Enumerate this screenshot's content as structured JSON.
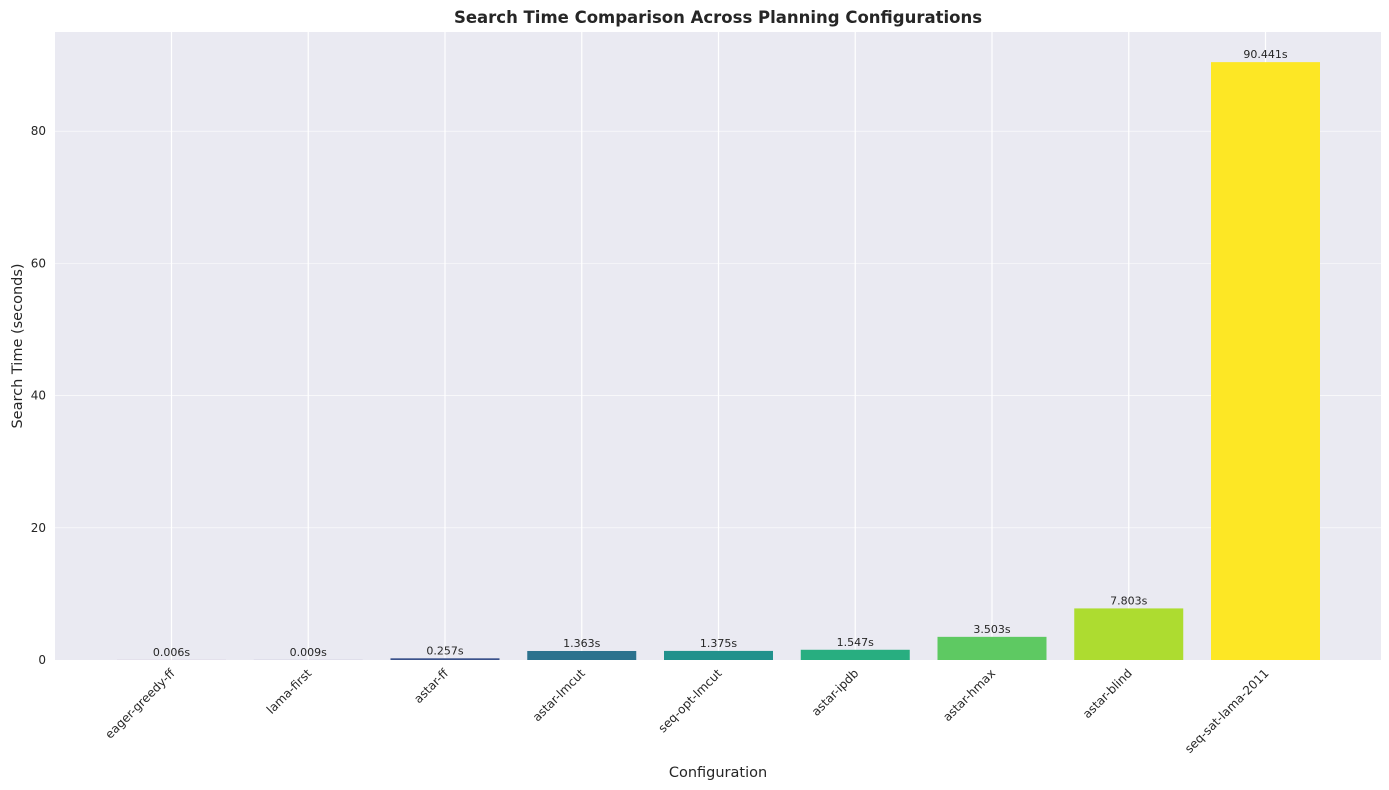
{
  "chart_data": {
    "type": "bar",
    "title": "Search Time Comparison Across Planning Configurations",
    "xlabel": "Configuration",
    "ylabel": "Search Time (seconds)",
    "ylim": [
      0,
      95
    ],
    "yticks": [
      0,
      20,
      40,
      60,
      80
    ],
    "grid": true,
    "categories": [
      "eager-greedy-ff",
      "lama-first",
      "astar-ff",
      "astar-lmcut",
      "seq-opt-lmcut",
      "astar-ipdb",
      "astar-hmax",
      "astar-blind",
      "seq-sat-lama-2011"
    ],
    "values": [
      0.006,
      0.009,
      0.257,
      1.363,
      1.375,
      1.547,
      3.503,
      7.803,
      90.441
    ],
    "value_labels": [
      "0.006s",
      "0.009s",
      "0.257s",
      "1.363s",
      "1.375s",
      "1.547s",
      "3.503s",
      "7.803s",
      "90.441s"
    ],
    "colors": [
      "#440154",
      "#472d7b",
      "#3b528b",
      "#2c728e",
      "#21918c",
      "#28ae80",
      "#5ec962",
      "#addc30",
      "#fde725"
    ],
    "background": "#eaeaf2",
    "grid_color": "#ffffff"
  }
}
